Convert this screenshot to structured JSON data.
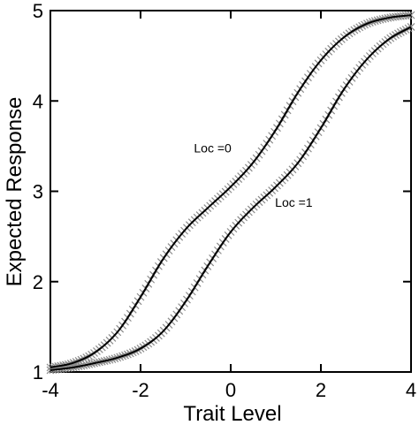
{
  "chart_data": {
    "type": "line",
    "title": "",
    "xlabel": "Trait Level",
    "ylabel": "Expected Response",
    "xlim": [
      -4,
      4
    ],
    "ylim": [
      1,
      5
    ],
    "xticks": [
      "-4",
      "-2",
      "0",
      "2",
      "4"
    ],
    "yticks": [
      "1",
      "2",
      "3",
      "4",
      "5"
    ],
    "grid": false,
    "legend": "none",
    "series": [
      {
        "label": "Loc =0",
        "x": [
          -4,
          -3.5,
          -3,
          -2.5,
          -2,
          -1.5,
          -1,
          -0.5,
          0,
          0.5,
          1,
          1.5,
          2,
          2.5,
          3,
          3.5,
          4
        ],
        "y": [
          1.05,
          1.1,
          1.22,
          1.45,
          1.83,
          2.25,
          2.58,
          2.82,
          3.05,
          3.32,
          3.68,
          4.1,
          4.45,
          4.7,
          4.85,
          4.92,
          4.95
        ]
      },
      {
        "label": "Loc =1",
        "x": [
          -4,
          -3.5,
          -3,
          -2.5,
          -2,
          -1.5,
          -1,
          -0.5,
          0,
          0.5,
          1,
          1.5,
          2,
          2.5,
          3,
          3.5,
          4
        ],
        "y": [
          1.02,
          1.05,
          1.1,
          1.16,
          1.26,
          1.45,
          1.78,
          2.18,
          2.55,
          2.82,
          3.05,
          3.32,
          3.7,
          4.12,
          4.45,
          4.68,
          4.82
        ]
      }
    ],
    "annotations": [
      {
        "text": "Loc =0",
        "x": -0.4,
        "y": 3.43
      },
      {
        "text": "Loc =1",
        "x": 1.4,
        "y": 2.83
      }
    ],
    "colors": {
      "line": "#000000",
      "marker": "#8a8a8a",
      "axis": "#000000"
    }
  }
}
